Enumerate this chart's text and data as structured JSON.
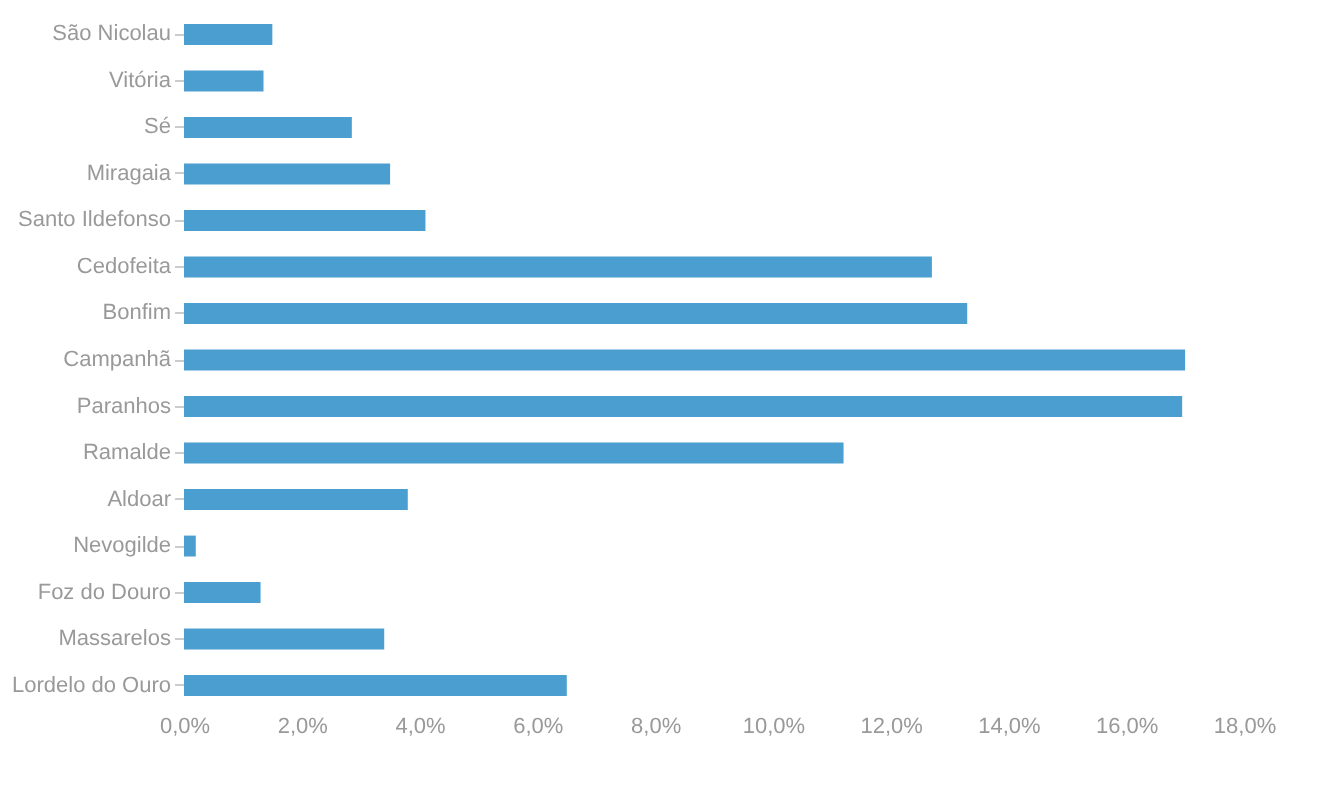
{
  "chart_data": {
    "type": "bar",
    "orientation": "horizontal",
    "categories": [
      "São Nicolau",
      "Vitória",
      "Sé",
      "Miragaia",
      "Santo Ildefonso",
      "Cedofeita",
      "Bonfim",
      "Campanhã",
      "Paranhos",
      "Ramalde",
      "Aldoar",
      "Nevogilde",
      "Foz do Douro",
      "Massarelos",
      "Lordelo do Ouro"
    ],
    "values": [
      1.5,
      1.35,
      2.85,
      3.5,
      4.1,
      12.7,
      13.3,
      17.0,
      16.95,
      11.2,
      3.8,
      0.2,
      1.3,
      3.4,
      6.5
    ],
    "color": "#4a9fd0",
    "xlim": [
      0,
      18
    ],
    "xticks": [
      {
        "value": 0,
        "label": "0,0%"
      },
      {
        "value": 2,
        "label": "2,0%"
      },
      {
        "value": 4,
        "label": "4,0%"
      },
      {
        "value": 6,
        "label": "6,0%"
      },
      {
        "value": 8,
        "label": "8,0%"
      },
      {
        "value": 10,
        "label": "10,0%"
      },
      {
        "value": 12,
        "label": "12,0%"
      },
      {
        "value": 14,
        "label": "14,0%"
      },
      {
        "value": 16,
        "label": "16,0%"
      },
      {
        "value": 18,
        "label": "18,0%"
      }
    ],
    "grid": false
  }
}
